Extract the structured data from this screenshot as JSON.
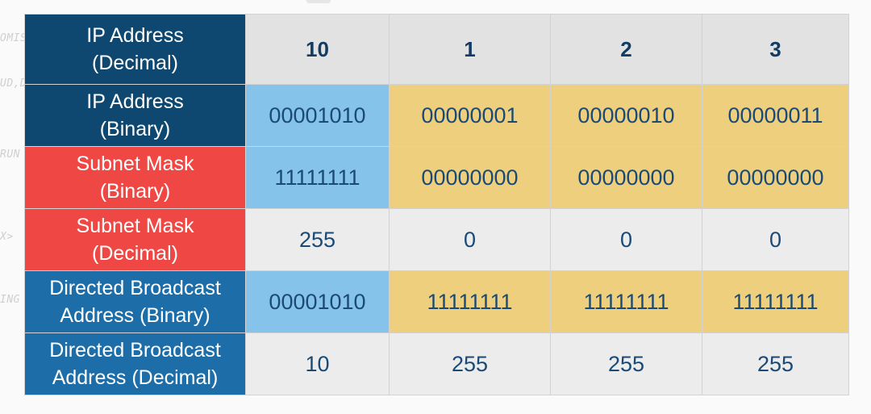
{
  "background_fragments": [
    "OMISC",
    "UD,D",
    "RUN",
    "X>",
    "ING"
  ],
  "row_labels": {
    "ip_decimal": [
      "IP Address",
      "(Decimal)"
    ],
    "ip_binary": [
      "IP Address",
      "(Binary)"
    ],
    "mask_binary": [
      "Subnet Mask",
      "(Binary)"
    ],
    "mask_decimal": [
      "Subnet Mask",
      "(Decimal)"
    ],
    "broadcast_binary": [
      "Directed Broadcast",
      "Address (Binary)"
    ],
    "broadcast_decimal": [
      "Directed Broadcast",
      "Address (Decimal)"
    ]
  },
  "rows": {
    "ip_decimal": [
      "10",
      "1",
      "2",
      "3"
    ],
    "ip_binary": [
      "00001010",
      "00000001",
      "00000010",
      "00000011"
    ],
    "mask_binary": [
      "11111111",
      "00000000",
      "00000000",
      "00000000"
    ],
    "mask_decimal": [
      "255",
      "0",
      "0",
      "0"
    ],
    "broadcast_binary": [
      "00001010",
      "11111111",
      "11111111",
      "11111111"
    ],
    "broadcast_decimal": [
      "10",
      "255",
      "255",
      "255"
    ]
  },
  "colors": {
    "label_ip": "#0e4870",
    "label_mask": "#ef4844",
    "label_broadcast": "#1d6ea8",
    "network_octet": "#86c3ea",
    "host_octet": "#eecf7e",
    "plain_cell": "#ececec",
    "value_text": "#1a4a75"
  }
}
